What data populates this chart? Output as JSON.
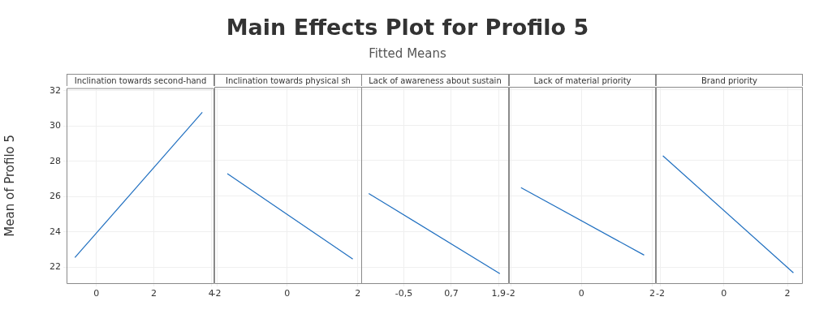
{
  "chart_data": [
    {
      "type": "other",
      "title": "Main Effects Plot for Profilo 5",
      "subtitle": "Fitted Means"
    },
    {
      "type": "line",
      "title": "Inclination towards second-hand",
      "ylabel": "Mean of Profilo 5",
      "x": [
        -0.75,
        3.69
      ],
      "values": [
        22.55,
        30.78
      ],
      "color": "#1f6fc0",
      "xlim": [
        -1.04,
        4.08
      ],
      "xticks": [
        0,
        2,
        4
      ],
      "ylim": [
        21.1,
        32.15
      ],
      "yticks": [
        22,
        24,
        26,
        28,
        30,
        32
      ],
      "grid": true
    },
    {
      "type": "line",
      "title": "Inclination towards physical sh",
      "x": [
        -1.7,
        1.86
      ],
      "values": [
        27.26,
        22.46
      ],
      "color": "#1f6fc0",
      "xlim": [
        -2.07,
        2.1
      ],
      "xticks": [
        -2,
        0,
        2
      ],
      "ylim": [
        21.1,
        32.15
      ],
      "yticks": [
        22,
        24,
        26,
        28,
        30,
        32
      ],
      "grid": true,
      "tick_labels": "x"
    },
    {
      "type": "line",
      "title": "Lack of awareness about sustain",
      "x": [
        -1.39,
        1.93
      ],
      "values": [
        26.15,
        21.64
      ],
      "color": "#1f6fc0",
      "xlim": [
        -1.58,
        2.14
      ],
      "xticks": [
        {
          "value": -0.5,
          "label": "-0,5"
        },
        {
          "value": 0.7,
          "label": "0,7"
        },
        {
          "value": 1.9,
          "label": "1,9"
        }
      ],
      "ylim": [
        21.1,
        32.15
      ],
      "yticks": [
        22,
        24,
        26,
        28,
        30,
        32
      ],
      "grid": true,
      "tick_labels": "x"
    },
    {
      "type": "line",
      "title": "Lack of material priority",
      "x": [
        -1.71,
        1.77
      ],
      "values": [
        26.48,
        22.68
      ],
      "color": "#1f6fc0",
      "xlim": [
        -2.05,
        2.08
      ],
      "xticks": [
        -2,
        0,
        2
      ],
      "ylim": [
        21.1,
        32.15
      ],
      "yticks": [
        22,
        24,
        26,
        28,
        30,
        32
      ],
      "grid": true,
      "tick_labels": "x"
    },
    {
      "type": "line",
      "title": "Brand priority",
      "x": [
        -1.92,
        2.19
      ],
      "values": [
        28.27,
        21.68
      ],
      "color": "#1f6fc0",
      "xlim": [
        -2.14,
        2.46
      ],
      "xticks": [
        -2,
        0,
        2
      ],
      "ylim": [
        21.1,
        32.15
      ],
      "yticks": [
        22,
        24,
        26,
        28,
        30,
        32
      ],
      "grid": true,
      "tick_labels": "x"
    }
  ]
}
